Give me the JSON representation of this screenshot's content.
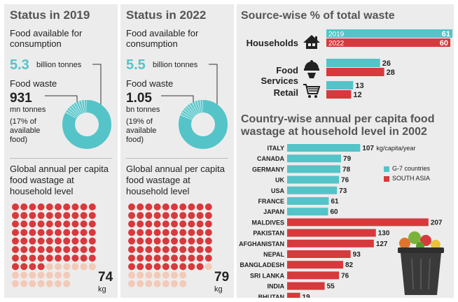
{
  "panels": [
    {
      "title": "Status in 2019",
      "food_available_label": "Food available for consumption",
      "food_available_value": "5.3",
      "food_available_unit": "billion tonnes",
      "food_waste_label": "Food waste",
      "food_waste_value": "931",
      "food_waste_unit": "mn tonnes",
      "food_waste_pct_text": "(17% of available food)",
      "food_waste_pct": 17,
      "global_label": "Global annual per capita food wastage at household level",
      "per_capita_value": "74",
      "per_capita_unit": "kg",
      "per_capita_kg": 74
    },
    {
      "title": "Status in 2022",
      "food_available_label": "Food available for consumption",
      "food_available_value": "5.5",
      "food_available_unit": "billion tonnes",
      "food_waste_label": "Food waste",
      "food_waste_value": "1.05",
      "food_waste_unit": "bn tonnes",
      "food_waste_pct_text": "(19% of available food)",
      "food_waste_pct": 19,
      "global_label": "Global annual per capita food wastage at household level",
      "per_capita_value": "79",
      "per_capita_unit": "kg",
      "per_capita_kg": 79
    }
  ],
  "colors": {
    "teal": "#54c4c8",
    "red": "#d8393c",
    "pale_dot": "#f3c9b8",
    "panel_bg": "#ececec"
  },
  "icons": [
    "house-icon",
    "food-service-icon",
    "shopping-cart-icon",
    "trash-bin-icon"
  ],
  "chart_data": [
    {
      "type": "bar",
      "title": "Source-wise % of total waste",
      "categories": [
        "Households",
        "Food Services",
        "Retail"
      ],
      "series": [
        {
          "name": "2019",
          "values": [
            61,
            26,
            13
          ]
        },
        {
          "name": "2022",
          "values": [
            60,
            28,
            12
          ]
        }
      ],
      "orientation": "horizontal"
    },
    {
      "type": "bar",
      "title": "Country-wise annual per capita food wastage at household level in 2002",
      "unit_label": "kg/capita/year",
      "orientation": "horizontal",
      "categories": [
        "ITALY",
        "CANADA",
        "GERMANY",
        "UK",
        "USA",
        "FRANCE",
        "JAPAN",
        "MALDIVES",
        "PAKISTAN",
        "AFGHANISTAN",
        "NEPAL",
        "BANGLADESH",
        "SRI LANKA",
        "INDIA",
        "BHUTAN"
      ],
      "values": [
        107,
        79,
        78,
        76,
        73,
        61,
        60,
        207,
        130,
        127,
        93,
        82,
        76,
        55,
        19
      ],
      "groups": [
        "G-7 countries",
        "G-7 countries",
        "G-7 countries",
        "G-7 countries",
        "G-7 countries",
        "G-7 countries",
        "G-7 countries",
        "SOUTH ASIA",
        "SOUTH ASIA",
        "SOUTH ASIA",
        "SOUTH ASIA",
        "SOUTH ASIA",
        "SOUTH ASIA",
        "SOUTH ASIA",
        "SOUTH ASIA"
      ],
      "legend": [
        {
          "name": "G-7 countries",
          "color": "#54c4c8"
        },
        {
          "name": "SOUTH ASIA",
          "color": "#d8393c"
        }
      ],
      "legend_position": "right"
    }
  ]
}
